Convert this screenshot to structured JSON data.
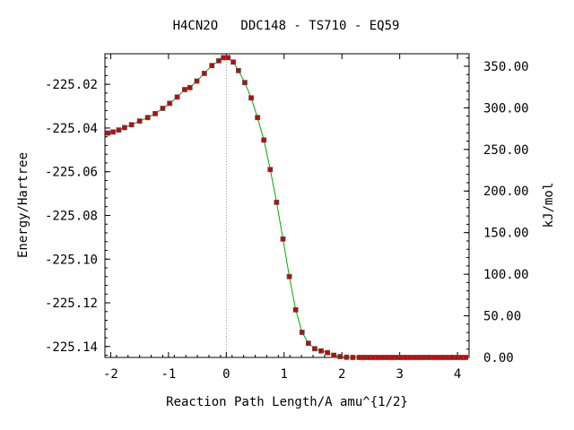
{
  "chart_data": {
    "type": "line",
    "title": "H4CN2O   DDC148 - TS710 - EQ59",
    "xlabel": "Reaction Path Length/A amu^{1/2}",
    "ylabel": "Energy/Hartree",
    "y2label": "kJ/mol",
    "xlim": [
      -2.1,
      4.2
    ],
    "ylim": [
      -225.145,
      -225.006
    ],
    "y2lim": [
      0,
      365
    ],
    "x_ticks": [
      -2,
      -1,
      0,
      1,
      2,
      3,
      4
    ],
    "x_tick_labels": [
      "-2",
      "-1",
      "0",
      "1",
      "2",
      "3",
      "4"
    ],
    "y_ticks": [
      -225.02,
      -225.04,
      -225.06,
      -225.08,
      -225.1,
      -225.12,
      -225.14
    ],
    "y_tick_labels": [
      "-225.02",
      "-225.04",
      "-225.06",
      "-225.08",
      "-225.10",
      "-225.12",
      "-225.14"
    ],
    "y2_ticks": [
      350,
      300,
      250,
      200,
      150,
      100,
      50,
      0
    ],
    "y2_tick_labels": [
      "350.00",
      "300.00",
      "250.00",
      "200.00",
      "150.00",
      "100.00",
      "50.00",
      "0.00"
    ],
    "ts_marker_x": 0,
    "grid": false,
    "colors": {
      "line": "#00aa00",
      "points": "#cc0000",
      "point_border": "#555555",
      "ts_line": "#999999"
    },
    "series": [
      {
        "x": [
          -2.05,
          -1.96,
          -1.86,
          -1.76,
          -1.64,
          -1.5,
          -1.36,
          -1.23,
          -1.1,
          -0.98,
          -0.85,
          -0.72,
          -0.63,
          -0.51,
          -0.38,
          -0.25,
          -0.13,
          -0.05,
          0.03,
          0.12,
          0.21,
          0.32,
          0.43,
          0.54,
          0.65,
          0.76,
          0.87,
          0.98,
          1.09,
          1.2,
          1.31,
          1.42,
          1.53,
          1.64,
          1.75,
          1.86,
          1.97,
          2.08,
          2.19,
          2.3,
          2.38,
          2.46,
          2.54,
          2.62,
          2.7,
          2.78,
          2.86,
          2.94,
          3.02,
          3.1,
          3.18,
          3.26,
          3.34,
          3.42,
          3.5,
          3.58,
          3.66,
          3.74,
          3.82,
          3.9,
          3.98,
          4.06,
          4.14
        ],
        "y": [
          -225.0423,
          -225.0418,
          -225.0409,
          -225.0398,
          -225.0385,
          -225.0368,
          -225.0352,
          -225.0334,
          -225.031,
          -225.0287,
          -225.0258,
          -225.0224,
          -225.0215,
          -225.0185,
          -225.015,
          -225.0114,
          -225.0092,
          -225.0078,
          -225.0078,
          -225.0098,
          -225.0137,
          -225.0192,
          -225.0262,
          -225.0352,
          -225.0455,
          -225.059,
          -225.074,
          -225.0908,
          -225.108,
          -225.1232,
          -225.1335,
          -225.1385,
          -225.141,
          -225.142,
          -225.1428,
          -225.144,
          -225.1446,
          -225.1449,
          -225.145,
          -225.145,
          -225.145,
          -225.145,
          -225.145,
          -225.145,
          -225.145,
          -225.145,
          -225.145,
          -225.145,
          -225.145,
          -225.145,
          -225.145,
          -225.145,
          -225.145,
          -225.145,
          -225.145,
          -225.145,
          -225.145,
          -225.145,
          -225.145,
          -225.145,
          -225.145,
          -225.145,
          -225.145
        ]
      }
    ]
  }
}
